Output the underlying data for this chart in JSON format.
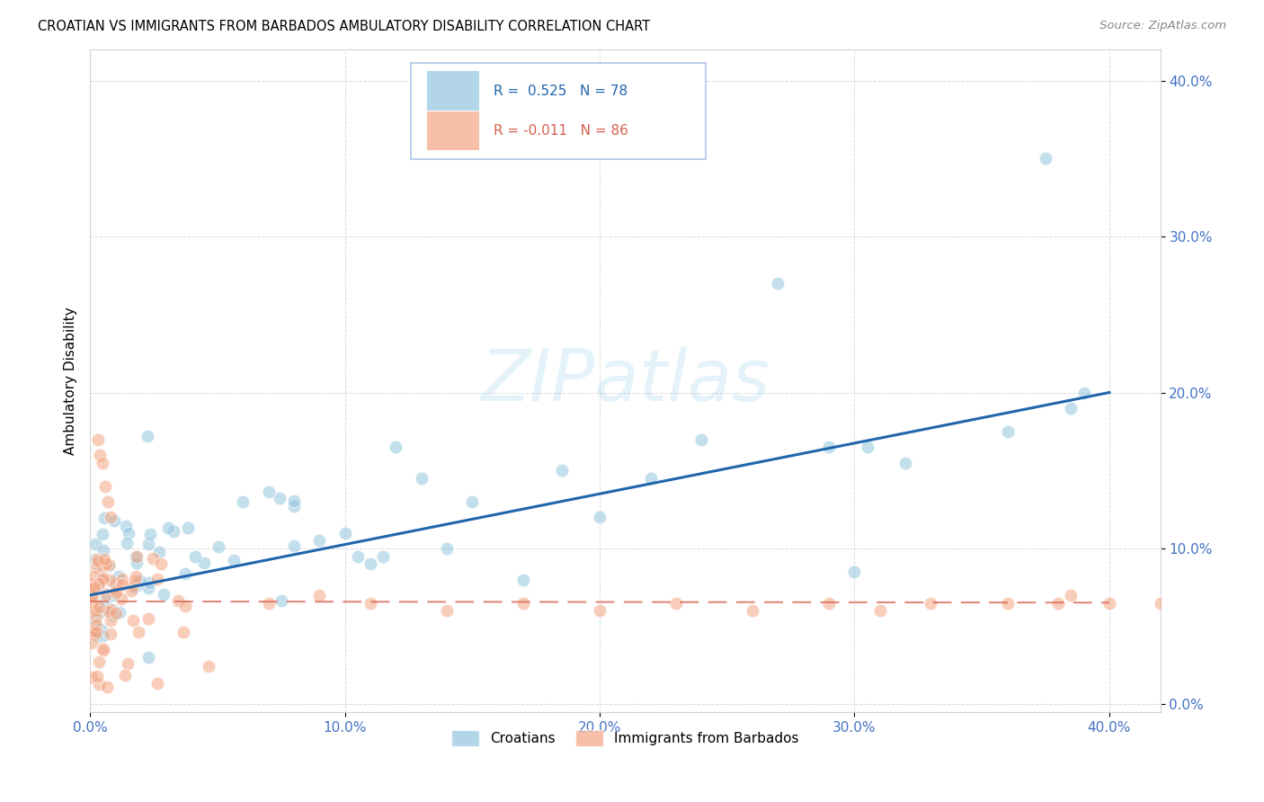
{
  "title": "CROATIAN VS IMMIGRANTS FROM BARBADOS AMBULATORY DISABILITY CORRELATION CHART",
  "source": "Source: ZipAtlas.com",
  "ylabel": "Ambulatory Disability",
  "watermark": "ZIPatlas",
  "xlim": [
    0.0,
    0.42
  ],
  "ylim": [
    -0.005,
    0.42
  ],
  "xtick_vals": [
    0.0,
    0.1,
    0.2,
    0.3,
    0.4
  ],
  "ytick_vals": [
    0.0,
    0.1,
    0.2,
    0.3,
    0.4
  ],
  "croatian_color": "#92c5de",
  "barbados_color": "#f4a582",
  "croatian_line_color": "#2166ac",
  "barbados_line_color": "#d6604d",
  "tick_color": "#4472c4",
  "legend_box_color": "#c6dbef",
  "legend_r1_color": "#2166ac",
  "legend_r2_color": "#d6604d"
}
